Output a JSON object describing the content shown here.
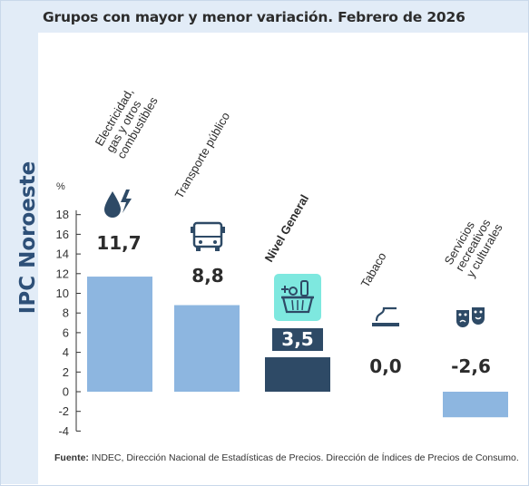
{
  "title": "Grupos con mayor y menor variación. Febrero de 2026",
  "side_label": "IPC Noroeste",
  "footer": {
    "prefix": "Fuente:",
    "text": "INDEC, Dirección Nacional de Estadísticas de Precios. Dirección de Índices de Precios de Consumo."
  },
  "colors": {
    "bar": "#8db6e0",
    "bar_highlight": "#2e4a66",
    "label_highlight_bg": "#2e4a66",
    "icon_highlight_bg": "#7ee8df",
    "icon": "#2e4a66",
    "axis": "#333333"
  },
  "chart_data": {
    "type": "bar",
    "ylabel": "%",
    "ylim": [
      -4,
      19
    ],
    "yticks": [
      -4,
      -2,
      0,
      2,
      4,
      6,
      8,
      10,
      12,
      14,
      16,
      18
    ],
    "grid": false,
    "categories": [
      [
        "Electricidad,",
        "gas y otros",
        "combustibles"
      ],
      [
        "Transporte público"
      ],
      [
        "Nivel General"
      ],
      [
        "Tabaco"
      ],
      [
        "Servicios",
        "recreativos",
        "y culturales"
      ]
    ],
    "values": [
      11.7,
      8.8,
      3.5,
      0.0,
      -2.6
    ],
    "value_labels": [
      "11,7",
      "8,8",
      "3,5",
      "0,0",
      "-2,6"
    ],
    "highlight_index": 2,
    "icons": [
      "energy-icon",
      "bus-icon",
      "basket-icon",
      "cigarette-icon",
      "theater-masks-icon"
    ]
  }
}
